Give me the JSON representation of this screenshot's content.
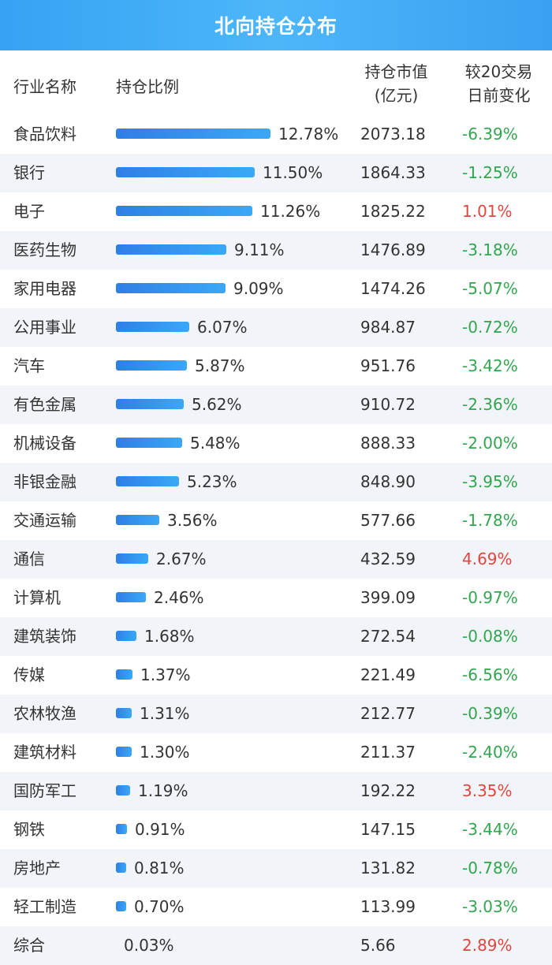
{
  "title": "北向持仓分布",
  "columns": {
    "name": "行业名称",
    "ratio": "持仓比例",
    "value_line1": "持仓市值",
    "value_line2": "(亿元)",
    "change_line1": "较20交易",
    "change_line2": "日前变化"
  },
  "colors": {
    "bar": "#3a96f0",
    "header": "#3ea8f6",
    "negative": "#31a64e",
    "positive": "#e0463d"
  },
  "chart_data": {
    "type": "table",
    "title": "北向持仓分布",
    "rows": [
      {
        "industry": "食品饮料",
        "ratio": 12.78,
        "ratio_label": "12.78%",
        "value": "2073.18",
        "change": "-6.39%"
      },
      {
        "industry": "银行",
        "ratio": 11.5,
        "ratio_label": "11.50%",
        "value": "1864.33",
        "change": "-1.25%"
      },
      {
        "industry": "电子",
        "ratio": 11.26,
        "ratio_label": "11.26%",
        "value": "1825.22",
        "change": "1.01%"
      },
      {
        "industry": "医药生物",
        "ratio": 9.11,
        "ratio_label": "9.11%",
        "value": "1476.89",
        "change": "-3.18%"
      },
      {
        "industry": "家用电器",
        "ratio": 9.09,
        "ratio_label": "9.09%",
        "value": "1474.26",
        "change": "-5.07%"
      },
      {
        "industry": "公用事业",
        "ratio": 6.07,
        "ratio_label": "6.07%",
        "value": "984.87",
        "change": "-0.72%"
      },
      {
        "industry": "汽车",
        "ratio": 5.87,
        "ratio_label": "5.87%",
        "value": "951.76",
        "change": "-3.42%"
      },
      {
        "industry": "有色金属",
        "ratio": 5.62,
        "ratio_label": "5.62%",
        "value": "910.72",
        "change": "-2.36%"
      },
      {
        "industry": "机械设备",
        "ratio": 5.48,
        "ratio_label": "5.48%",
        "value": "888.33",
        "change": "-2.00%"
      },
      {
        "industry": "非银金融",
        "ratio": 5.23,
        "ratio_label": "5.23%",
        "value": "848.90",
        "change": "-3.95%"
      },
      {
        "industry": "交通运输",
        "ratio": 3.56,
        "ratio_label": "3.56%",
        "value": "577.66",
        "change": "-1.78%"
      },
      {
        "industry": "通信",
        "ratio": 2.67,
        "ratio_label": "2.67%",
        "value": "432.59",
        "change": "4.69%"
      },
      {
        "industry": "计算机",
        "ratio": 2.46,
        "ratio_label": "2.46%",
        "value": "399.09",
        "change": "-0.97%"
      },
      {
        "industry": "建筑装饰",
        "ratio": 1.68,
        "ratio_label": "1.68%",
        "value": "272.54",
        "change": "-0.08%"
      },
      {
        "industry": "传媒",
        "ratio": 1.37,
        "ratio_label": "1.37%",
        "value": "221.49",
        "change": "-6.56%"
      },
      {
        "industry": "农林牧渔",
        "ratio": 1.31,
        "ratio_label": "1.31%",
        "value": "212.77",
        "change": "-0.39%"
      },
      {
        "industry": "建筑材料",
        "ratio": 1.3,
        "ratio_label": "1.30%",
        "value": "211.37",
        "change": "-2.40%"
      },
      {
        "industry": "国防军工",
        "ratio": 1.19,
        "ratio_label": "1.19%",
        "value": "192.22",
        "change": "3.35%"
      },
      {
        "industry": "钢铁",
        "ratio": 0.91,
        "ratio_label": "0.91%",
        "value": "147.15",
        "change": "-3.44%"
      },
      {
        "industry": "房地产",
        "ratio": 0.81,
        "ratio_label": "0.81%",
        "value": "131.82",
        "change": "-0.78%"
      },
      {
        "industry": "轻工制造",
        "ratio": 0.7,
        "ratio_label": "0.70%",
        "value": "113.99",
        "change": "-3.03%"
      },
      {
        "industry": "综合",
        "ratio": 0.03,
        "ratio_label": "0.03%",
        "value": "5.66",
        "change": "2.89%"
      }
    ]
  }
}
